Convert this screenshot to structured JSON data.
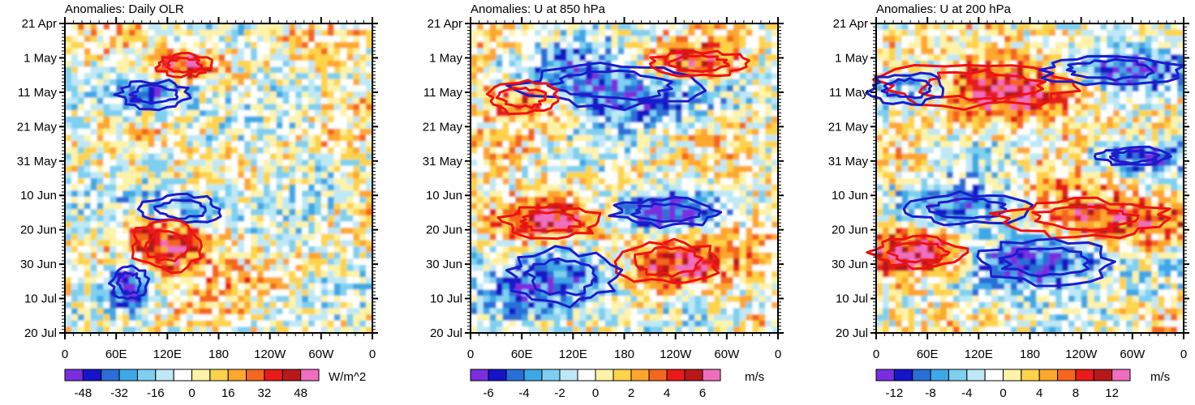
{
  "chart_data": [
    {
      "type": "heatmap",
      "title": "Anomalies: Daily OLR",
      "x_tick_labels": [
        "0",
        "60E",
        "120E",
        "180",
        "120W",
        "60W",
        "0"
      ],
      "y_tick_labels": [
        "21 Apr",
        "1 May",
        "11 May",
        "21 May",
        "31 May",
        "10 Jun",
        "20 Jun",
        "30 Jun",
        "10 Jul",
        "20 Jul"
      ],
      "xlim": [
        0,
        360
      ],
      "ylim": [
        "21 Apr",
        "20 Jul"
      ],
      "colorbar_labels": [
        "-48",
        "-32",
        "-16",
        "0",
        "16",
        "32",
        "48"
      ],
      "units": "W/m^2",
      "contour_colors": {
        "negative": "#1c1ccc",
        "positive": "#ee1111"
      }
    },
    {
      "type": "heatmap",
      "title": "Anomalies: U at 850 hPa",
      "x_tick_labels": [
        "0",
        "60E",
        "120E",
        "180",
        "120W",
        "60W",
        "0"
      ],
      "y_tick_labels": [
        "21 Apr",
        "1 May",
        "11 May",
        "21 May",
        "31 May",
        "10 Jun",
        "20 Jun",
        "30 Jun",
        "10 Jul",
        "20 Jul"
      ],
      "xlim": [
        0,
        360
      ],
      "ylim": [
        "21 Apr",
        "20 Jul"
      ],
      "colorbar_labels": [
        "-6",
        "-4",
        "-2",
        "0",
        "2",
        "4",
        "6"
      ],
      "units": "m/s",
      "contour_colors": {
        "negative": "#1c1ccc",
        "positive": "#ee1111"
      }
    },
    {
      "type": "heatmap",
      "title": "Anomalies: U at 200 hPa",
      "x_tick_labels": [
        "0",
        "60E",
        "120E",
        "180",
        "120W",
        "60W",
        "0"
      ],
      "y_tick_labels": [
        "21 Apr",
        "1 May",
        "11 May",
        "21 May",
        "31 May",
        "10 Jun",
        "20 Jun",
        "30 Jun",
        "10 Jul",
        "20 Jul"
      ],
      "xlim": [
        0,
        360
      ],
      "ylim": [
        "21 Apr",
        "20 Jul"
      ],
      "colorbar_labels": [
        "-12",
        "-8",
        "-4",
        "0",
        "4",
        "8",
        "12"
      ],
      "units": "m/s",
      "contour_colors": {
        "negative": "#1c1ccc",
        "positive": "#ee1111"
      }
    }
  ],
  "palette": [
    "#7a2ee0",
    "#1414c8",
    "#2a6ed8",
    "#3ea8e6",
    "#7fd0f0",
    "#bfe8f6",
    "#ffffff",
    "#fff3a8",
    "#ffd34a",
    "#ffa62e",
    "#f5661e",
    "#e81a1a",
    "#b81818",
    "#f06ec0"
  ]
}
